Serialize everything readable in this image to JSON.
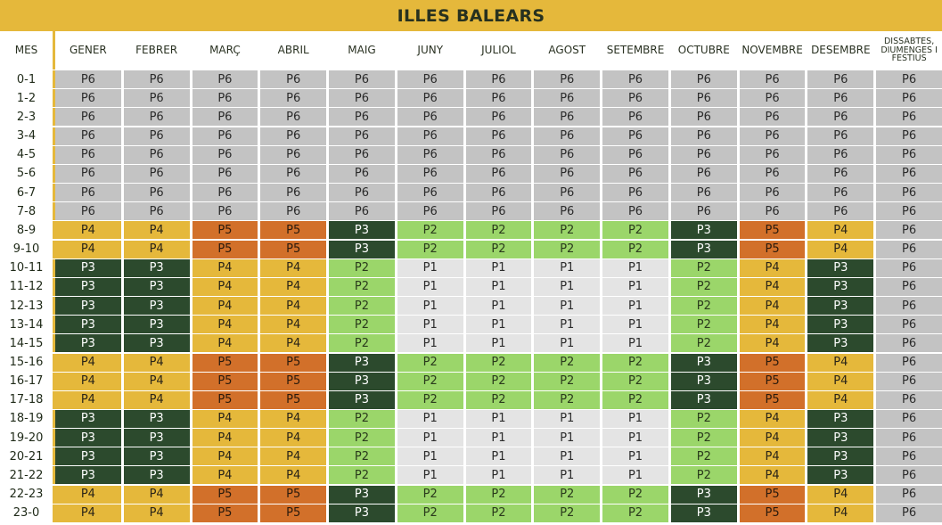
{
  "title": "ILLES BALEARS",
  "header": {
    "row_label": "MES",
    "columns": [
      "GENER",
      "FEBRER",
      "MARÇ",
      "ABRIL",
      "MAIG",
      "JUNY",
      "JULIOL",
      "AGOST",
      "SETEMBRE",
      "OCTUBRE",
      "NOVEMBRE",
      "DESEMBRE",
      "DISSABTES, DIUMENGES I FESTIUS"
    ]
  },
  "colors": {
    "P1": "#e4e4e4",
    "P2": "#9bd66a",
    "P3": "#2c4a2d",
    "P4": "#e5b83b",
    "P5": "#d2702a",
    "P6": "#c3c3c3",
    "title_bg": "#e5b83b"
  },
  "rows": [
    {
      "label": "0-1",
      "cells": [
        "P6",
        "P6",
        "P6",
        "P6",
        "P6",
        "P6",
        "P6",
        "P6",
        "P6",
        "P6",
        "P6",
        "P6",
        "P6"
      ]
    },
    {
      "label": "1-2",
      "cells": [
        "P6",
        "P6",
        "P6",
        "P6",
        "P6",
        "P6",
        "P6",
        "P6",
        "P6",
        "P6",
        "P6",
        "P6",
        "P6"
      ]
    },
    {
      "label": "2-3",
      "cells": [
        "P6",
        "P6",
        "P6",
        "P6",
        "P6",
        "P6",
        "P6",
        "P6",
        "P6",
        "P6",
        "P6",
        "P6",
        "P6"
      ]
    },
    {
      "label": "3-4",
      "cells": [
        "P6",
        "P6",
        "P6",
        "P6",
        "P6",
        "P6",
        "P6",
        "P6",
        "P6",
        "P6",
        "P6",
        "P6",
        "P6"
      ]
    },
    {
      "label": "4-5",
      "cells": [
        "P6",
        "P6",
        "P6",
        "P6",
        "P6",
        "P6",
        "P6",
        "P6",
        "P6",
        "P6",
        "P6",
        "P6",
        "P6"
      ]
    },
    {
      "label": "5-6",
      "cells": [
        "P6",
        "P6",
        "P6",
        "P6",
        "P6",
        "P6",
        "P6",
        "P6",
        "P6",
        "P6",
        "P6",
        "P6",
        "P6"
      ]
    },
    {
      "label": "6-7",
      "cells": [
        "P6",
        "P6",
        "P6",
        "P6",
        "P6",
        "P6",
        "P6",
        "P6",
        "P6",
        "P6",
        "P6",
        "P6",
        "P6"
      ]
    },
    {
      "label": "7-8",
      "cells": [
        "P6",
        "P6",
        "P6",
        "P6",
        "P6",
        "P6",
        "P6",
        "P6",
        "P6",
        "P6",
        "P6",
        "P6",
        "P6"
      ]
    },
    {
      "label": "8-9",
      "cells": [
        "P4",
        "P4",
        "P5",
        "P5",
        "P3",
        "P2",
        "P2",
        "P2",
        "P2",
        "P3",
        "P5",
        "P4",
        "P6"
      ]
    },
    {
      "label": "9-10",
      "cells": [
        "P4",
        "P4",
        "P5",
        "P5",
        "P3",
        "P2",
        "P2",
        "P2",
        "P2",
        "P3",
        "P5",
        "P4",
        "P6"
      ]
    },
    {
      "label": "10-11",
      "cells": [
        "P3",
        "P3",
        "P4",
        "P4",
        "P2",
        "P1",
        "P1",
        "P1",
        "P1",
        "P2",
        "P4",
        "P3",
        "P6"
      ]
    },
    {
      "label": "11-12",
      "cells": [
        "P3",
        "P3",
        "P4",
        "P4",
        "P2",
        "P1",
        "P1",
        "P1",
        "P1",
        "P2",
        "P4",
        "P3",
        "P6"
      ]
    },
    {
      "label": "12-13",
      "cells": [
        "P3",
        "P3",
        "P4",
        "P4",
        "P2",
        "P1",
        "P1",
        "P1",
        "P1",
        "P2",
        "P4",
        "P3",
        "P6"
      ]
    },
    {
      "label": "13-14",
      "cells": [
        "P3",
        "P3",
        "P4",
        "P4",
        "P2",
        "P1",
        "P1",
        "P1",
        "P1",
        "P2",
        "P4",
        "P3",
        "P6"
      ]
    },
    {
      "label": "14-15",
      "cells": [
        "P3",
        "P3",
        "P4",
        "P4",
        "P2",
        "P1",
        "P1",
        "P1",
        "P1",
        "P2",
        "P4",
        "P3",
        "P6"
      ]
    },
    {
      "label": "15-16",
      "cells": [
        "P4",
        "P4",
        "P5",
        "P5",
        "P3",
        "P2",
        "P2",
        "P2",
        "P2",
        "P3",
        "P5",
        "P4",
        "P6"
      ]
    },
    {
      "label": "16-17",
      "cells": [
        "P4",
        "P4",
        "P5",
        "P5",
        "P3",
        "P2",
        "P2",
        "P2",
        "P2",
        "P3",
        "P5",
        "P4",
        "P6"
      ]
    },
    {
      "label": "17-18",
      "cells": [
        "P4",
        "P4",
        "P5",
        "P5",
        "P3",
        "P2",
        "P2",
        "P2",
        "P2",
        "P3",
        "P5",
        "P4",
        "P6"
      ]
    },
    {
      "label": "18-19",
      "cells": [
        "P3",
        "P3",
        "P4",
        "P4",
        "P2",
        "P1",
        "P1",
        "P1",
        "P1",
        "P2",
        "P4",
        "P3",
        "P6"
      ]
    },
    {
      "label": "19-20",
      "cells": [
        "P3",
        "P3",
        "P4",
        "P4",
        "P2",
        "P1",
        "P1",
        "P1",
        "P1",
        "P2",
        "P4",
        "P3",
        "P6"
      ]
    },
    {
      "label": "20-21",
      "cells": [
        "P3",
        "P3",
        "P4",
        "P4",
        "P2",
        "P1",
        "P1",
        "P1",
        "P1",
        "P2",
        "P4",
        "P3",
        "P6"
      ]
    },
    {
      "label": "21-22",
      "cells": [
        "P3",
        "P3",
        "P4",
        "P4",
        "P2",
        "P1",
        "P1",
        "P1",
        "P1",
        "P2",
        "P4",
        "P3",
        "P6"
      ]
    },
    {
      "label": "22-23",
      "cells": [
        "P4",
        "P4",
        "P5",
        "P5",
        "P3",
        "P2",
        "P2",
        "P2",
        "P2",
        "P3",
        "P5",
        "P4",
        "P6"
      ]
    },
    {
      "label": "23-0",
      "cells": [
        "P4",
        "P4",
        "P5",
        "P5",
        "P3",
        "P2",
        "P2",
        "P2",
        "P2",
        "P3",
        "P5",
        "P4",
        "P6"
      ]
    }
  ]
}
